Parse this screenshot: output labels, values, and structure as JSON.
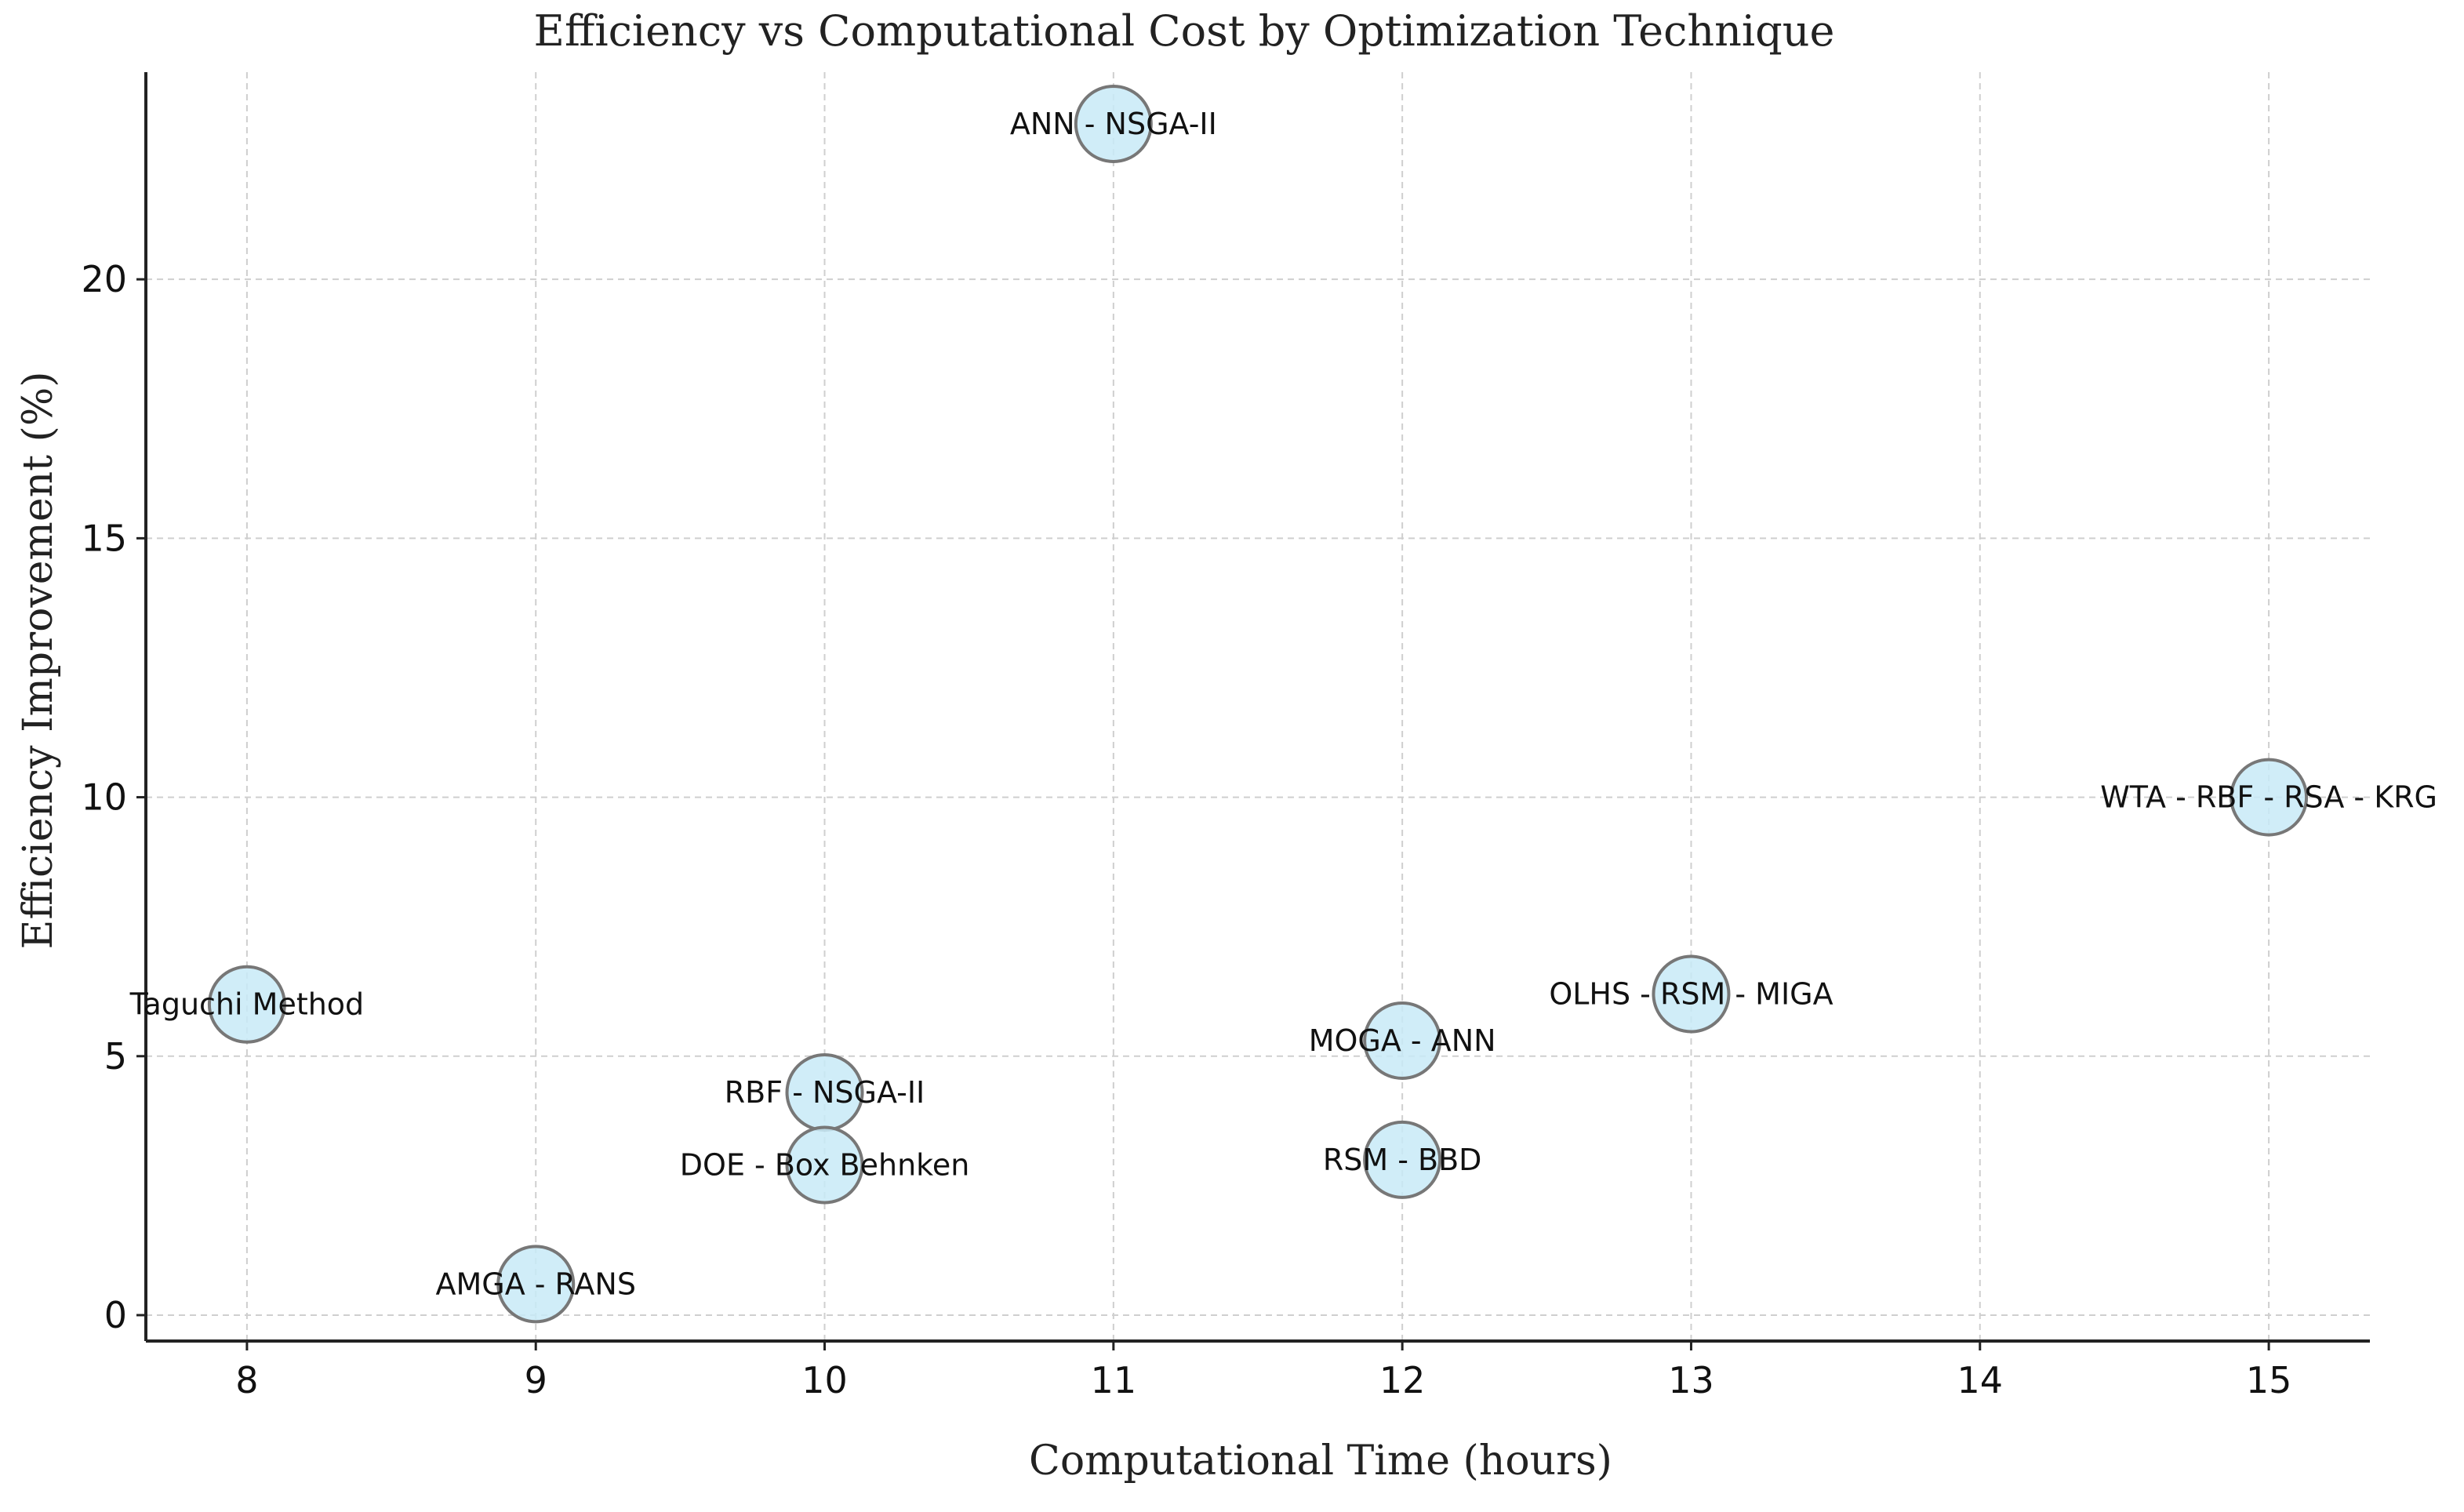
{
  "chart_data": {
    "type": "scatter",
    "title": "Efficiency vs Computational Cost by Optimization Technique",
    "xlabel": "Computational Time (hours)",
    "ylabel": "Efficiency Improvement (%)",
    "xlim": [
      7.65,
      15.35
    ],
    "ylim": [
      -0.5,
      24.0
    ],
    "xticks": [
      8,
      9,
      10,
      11,
      12,
      13,
      14,
      15
    ],
    "yticks": [
      0,
      5,
      10,
      15,
      20
    ],
    "grid": true,
    "colors": {
      "bubble_fill": "#c8eaf7",
      "bubble_stroke": "#777777"
    },
    "points": [
      {
        "label": "ANN - NSGA-II",
        "x": 11,
        "y": 23
      },
      {
        "label": "WTA - RBF - RSA - KRG",
        "x": 15,
        "y": 10
      },
      {
        "label": "Taguchi Method",
        "x": 8,
        "y": 6
      },
      {
        "label": "OLHS - RSM - MIGA",
        "x": 13,
        "y": 6.2
      },
      {
        "label": "MOGA - ANN",
        "x": 12,
        "y": 5.3
      },
      {
        "label": "RBF - NSGA-II",
        "x": 10,
        "y": 4.3
      },
      {
        "label": "DOE - Box Behnken",
        "x": 10,
        "y": 2.9
      },
      {
        "label": "RSM - BBD",
        "x": 12,
        "y": 3.0
      },
      {
        "label": "AMGA - RANS",
        "x": 9,
        "y": 0.6
      }
    ]
  }
}
